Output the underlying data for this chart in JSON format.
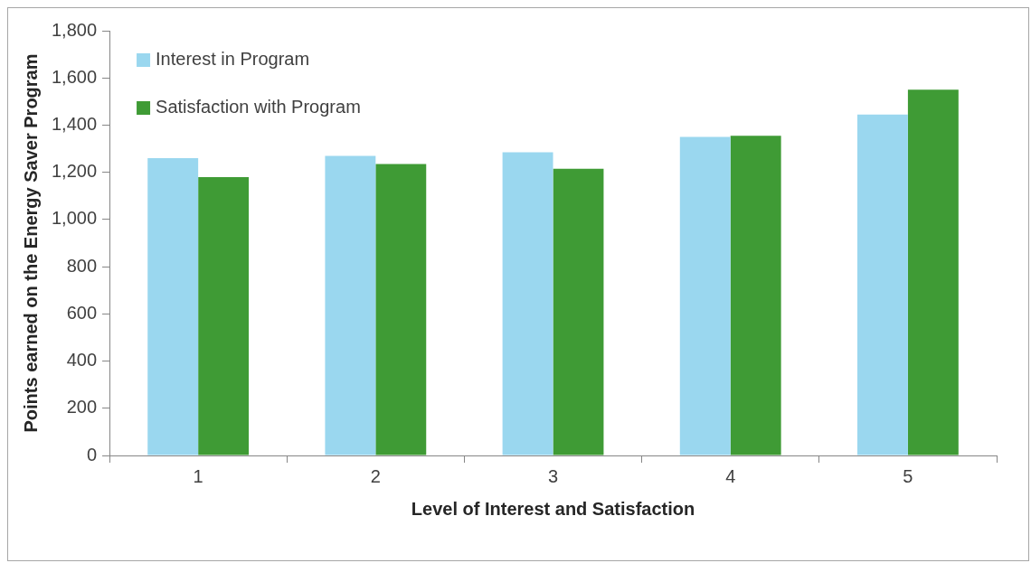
{
  "chart_data": {
    "type": "bar",
    "xlabel": "Level of Interest and Satisfaction",
    "ylabel": "Points earned on the Energy Saver Program",
    "categories": [
      "1",
      "2",
      "3",
      "4",
      "5"
    ],
    "series": [
      {
        "name": "Interest in Program",
        "color": "#9ad7ef",
        "values": [
          1260,
          1270,
          1285,
          1350,
          1445
        ]
      },
      {
        "name": "Satisfaction with Program",
        "color": "#3f9b35",
        "values": [
          1180,
          1235,
          1215,
          1355,
          1550
        ]
      }
    ],
    "ylim": [
      0,
      1800
    ],
    "yticks": [
      0,
      200,
      400,
      600,
      800,
      {
        "value": 1000,
        "label": "1,000"
      },
      {
        "value": 1200,
        "label": "1,200"
      },
      {
        "value": 1400,
        "label": "1,400"
      },
      {
        "value": 1600,
        "label": "1,600"
      },
      {
        "value": 1800,
        "label": "1,800"
      }
    ],
    "grid": false,
    "legend": "top left"
  }
}
